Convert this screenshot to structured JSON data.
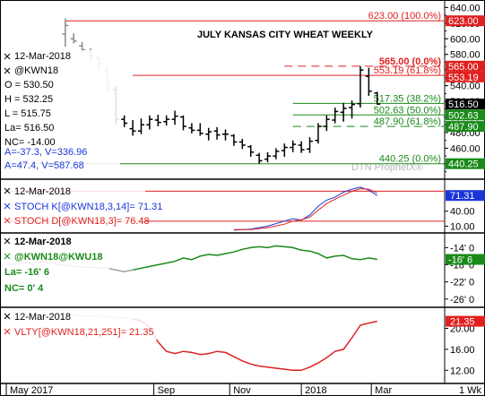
{
  "chart_data": [
    {
      "type": "ohlc",
      "panel": "price",
      "title": "JULY KANSAS CITY WHEAT WEEKLY",
      "watermark": "DTN ProphetX®",
      "info": {
        "date": "12-Mar-2018",
        "symbol": "@KWN18",
        "open": "O = 530.50",
        "high": "H = 532.25",
        "low": "L = 515.75",
        "last": "La= 516.50",
        "net_change": "NC= -14.00",
        "a_v1": "A=-37.3, V=336.96",
        "a_v2": "A=47.4, V=587.68"
      },
      "ylim": [
        425,
        645
      ],
      "yticks": [
        440,
        460,
        480,
        500,
        520,
        540,
        560,
        580,
        600,
        620,
        640
      ],
      "grid": false,
      "x_axis": {
        "range": [
          0,
          52
        ],
        "ticks": [
          {
            "x": 0,
            "label": "May 2017"
          },
          {
            "x": 17.5,
            "label": "Sep"
          },
          {
            "x": 26.5,
            "label": "Nov"
          },
          {
            "x": 35,
            "label": "2018"
          },
          {
            "x": 43.3,
            "label": "Mar"
          }
        ],
        "interval_label": "1 Wk"
      },
      "bars": [
        {
          "x": 7,
          "o": 606,
          "h": 626,
          "l": 590,
          "c": 617
        },
        {
          "x": 8,
          "o": 600,
          "h": 607,
          "l": 594,
          "c": 597
        },
        {
          "x": 9,
          "o": 591,
          "h": 596,
          "l": 580,
          "c": 586
        },
        {
          "x": 10,
          "o": 583,
          "h": 588,
          "l": 572,
          "c": 578
        },
        {
          "x": 11,
          "o": 575,
          "h": 578,
          "l": 559,
          "c": 568
        },
        {
          "x": 12,
          "o": 560,
          "h": 565,
          "l": 533,
          "c": 540
        },
        {
          "x": 13,
          "o": 535,
          "h": 540,
          "l": 490,
          "c": 497
        },
        {
          "x": 14,
          "o": 497,
          "h": 502,
          "l": 487,
          "c": 492
        },
        {
          "x": 15,
          "o": 485,
          "h": 496,
          "l": 476,
          "c": 482
        },
        {
          "x": 16,
          "o": 482,
          "h": 498,
          "l": 478,
          "c": 490
        },
        {
          "x": 17,
          "o": 490,
          "h": 502,
          "l": 484,
          "c": 497
        },
        {
          "x": 18,
          "o": 496,
          "h": 503,
          "l": 488,
          "c": 493
        },
        {
          "x": 19,
          "o": 494,
          "h": 502,
          "l": 489,
          "c": 497
        },
        {
          "x": 20,
          "o": 497,
          "h": 508,
          "l": 490,
          "c": 501
        },
        {
          "x": 21,
          "o": 500,
          "h": 502,
          "l": 483,
          "c": 488
        },
        {
          "x": 22,
          "o": 486,
          "h": 492,
          "l": 479,
          "c": 483
        },
        {
          "x": 23,
          "o": 483,
          "h": 492,
          "l": 476,
          "c": 479
        },
        {
          "x": 24,
          "o": 478,
          "h": 486,
          "l": 470,
          "c": 481
        },
        {
          "x": 25,
          "o": 482,
          "h": 487,
          "l": 471,
          "c": 477
        },
        {
          "x": 26,
          "o": 478,
          "h": 484,
          "l": 470,
          "c": 478
        },
        {
          "x": 27,
          "o": 476,
          "h": 478,
          "l": 463,
          "c": 468
        },
        {
          "x": 28,
          "o": 468,
          "h": 472,
          "l": 459,
          "c": 464
        },
        {
          "x": 29,
          "o": 462,
          "h": 464,
          "l": 449,
          "c": 455
        },
        {
          "x": 30,
          "o": 451,
          "h": 454,
          "l": 440,
          "c": 444
        },
        {
          "x": 31,
          "o": 446,
          "h": 455,
          "l": 442,
          "c": 450
        },
        {
          "x": 32,
          "o": 450,
          "h": 460,
          "l": 446,
          "c": 456
        },
        {
          "x": 33,
          "o": 457,
          "h": 466,
          "l": 449,
          "c": 461
        },
        {
          "x": 34,
          "o": 461,
          "h": 470,
          "l": 455,
          "c": 465
        },
        {
          "x": 35,
          "o": 464,
          "h": 469,
          "l": 454,
          "c": 458
        },
        {
          "x": 36,
          "o": 459,
          "h": 474,
          "l": 454,
          "c": 469
        },
        {
          "x": 37,
          "o": 470,
          "h": 492,
          "l": 466,
          "c": 488
        },
        {
          "x": 38,
          "o": 488,
          "h": 502,
          "l": 482,
          "c": 497
        },
        {
          "x": 39,
          "o": 496,
          "h": 512,
          "l": 492,
          "c": 507
        },
        {
          "x": 40,
          "o": 506,
          "h": 518,
          "l": 494,
          "c": 511
        },
        {
          "x": 41,
          "o": 512,
          "h": 521,
          "l": 498,
          "c": 516
        },
        {
          "x": 42,
          "o": 517,
          "h": 565,
          "l": 512,
          "c": 560
        },
        {
          "x": 43,
          "o": 552,
          "h": 563,
          "l": 527,
          "c": 533
        },
        {
          "x": 44,
          "o": 530.5,
          "h": 532.25,
          "l": 515.75,
          "c": 516.5
        }
      ],
      "hlines": [
        {
          "value": 623,
          "label": "623.00 (100.0%)",
          "color": "#e02020",
          "style": "solid",
          "from": 7,
          "label_color": "#e02020"
        },
        {
          "value": 565,
          "label": "565.00 (0.0%)",
          "color": "#e02020",
          "style": "dashed",
          "from": 33,
          "label_color": "#e02020"
        },
        {
          "value": 553.19,
          "label": "553.19 (61.8%)",
          "color": "#e02020",
          "style": "solid",
          "from": 15,
          "label_color": "#e02020"
        },
        {
          "value": 517.35,
          "label": "517.35 (38.2%)",
          "color": "#1a8a1a",
          "style": "solid",
          "from": 34,
          "label_color": "#1a8a1a"
        },
        {
          "value": 502.63,
          "label": "502.63 (50.0%)",
          "color": "#1a8a1a",
          "style": "solid",
          "from": 34,
          "label_color": "#1a8a1a"
        },
        {
          "value": 487.9,
          "label": "487.90 (61.8%)",
          "color": "#1a8a1a",
          "style": "dashed",
          "from": 34,
          "label_color": "#1a8a1a"
        },
        {
          "value": 440.25,
          "label": "440.25 (0.0%)",
          "color": "#1a8a1a",
          "style": "solid",
          "from": 0,
          "label_color": "#1a8a1a"
        }
      ],
      "right_tags": [
        {
          "value": 623,
          "label": "623.00",
          "bg": "#e02020",
          "fg": "#ffffff"
        },
        {
          "value": 565,
          "label": "565.00",
          "bg": "#e02020",
          "fg": "#ffffff"
        },
        {
          "value": 553.19,
          "label": "553.19",
          "bg": "#e02020",
          "fg": "#ffffff"
        },
        {
          "value": 516.5,
          "label": "516.50",
          "bg": "#000000",
          "fg": "#ffffff"
        },
        {
          "value": 502.63,
          "label": "502.63",
          "bg": "#1a8a1a",
          "fg": "#ffffff"
        },
        {
          "value": 487.9,
          "label": "487.90",
          "bg": "#1a8a1a",
          "fg": "#ffffff"
        },
        {
          "value": 440.25,
          "label": "440.25",
          "bg": "#1a8a1a",
          "fg": "#ffffff"
        }
      ]
    },
    {
      "type": "line",
      "panel": "stoch",
      "info": {
        "date": "12-Mar-2018",
        "k_label": "STOCH K[@KWN18,3,14]= 71.31",
        "d_label": "STOCH D[@KWN18,3]= 76.48"
      },
      "ylim": [
        0,
        95
      ],
      "yticks": [
        {
          "value": 10,
          "label": "10.00"
        },
        {
          "value": 40,
          "label": "40.00"
        }
      ],
      "levels": [
        {
          "value": 80,
          "color": "#e02020"
        },
        {
          "value": 20,
          "color": "#e02020"
        }
      ],
      "tag": {
        "value": 71.31,
        "label": "71.31",
        "bg": "#1a36d8",
        "fg": "#ffffff"
      },
      "series": [
        {
          "name": "STOCH K",
          "color": "#1a36d8",
          "x": [
            27,
            29,
            31,
            33,
            34,
            35,
            36,
            37,
            38,
            39,
            40,
            41,
            42,
            43,
            44
          ],
          "values": [
            2,
            4,
            10,
            20,
            25,
            22,
            32,
            50,
            62,
            68,
            78,
            84,
            88,
            82,
            71.3
          ]
        },
        {
          "name": "STOCH D",
          "color": "#e02020",
          "x": [
            27,
            29,
            31,
            33,
            34,
            35,
            36,
            37,
            38,
            39,
            40,
            41,
            42,
            43,
            44
          ],
          "values": [
            3,
            3,
            7,
            14,
            20,
            23,
            28,
            42,
            55,
            64,
            72,
            80,
            85,
            84,
            76.5
          ]
        }
      ]
    },
    {
      "type": "line",
      "panel": "spread",
      "info": {
        "date": "12-Mar-2018",
        "symbol": "@KWN18@KWU18",
        "last": "La= -16' 6",
        "net_change": "NC= 0' 4"
      },
      "ylim": [
        -27.5,
        -11
      ],
      "yticks": [
        {
          "value": -14,
          "label": "-14' 0"
        },
        {
          "value": -18,
          "label": "-18' 0"
        },
        {
          "value": -22,
          "label": "-22' 0"
        },
        {
          "value": -26,
          "label": "-26' 0"
        }
      ],
      "tag": {
        "value": -16.75,
        "label": "-16' 6",
        "bg": "#1a8a1a",
        "fg": "#ffffff"
      },
      "series": [
        {
          "name": "spread",
          "color": "#9aa09a",
          "x": [
            0,
            2,
            4,
            6,
            8,
            10,
            12,
            13,
            14,
            15
          ],
          "values": [
            -18.0,
            -17.6,
            -17.2,
            -17.8,
            -18.4,
            -18.6,
            -18.8,
            -19.2,
            -19.6,
            -19.2
          ]
        },
        {
          "name": "spread",
          "color": "#1a8a1a",
          "x": [
            15,
            17,
            19,
            20,
            21,
            22,
            23,
            24,
            25,
            26,
            27,
            28,
            29,
            30,
            31,
            32,
            33,
            34,
            35,
            36,
            37,
            38,
            39,
            40,
            41,
            42,
            43,
            44
          ],
          "values": [
            -19.2,
            -18.4,
            -17.6,
            -17.2,
            -16.4,
            -16.8,
            -16.0,
            -15.6,
            -15.8,
            -15.4,
            -15.0,
            -14.4,
            -14.0,
            -13.8,
            -14.0,
            -13.6,
            -13.8,
            -14.0,
            -14.6,
            -14.8,
            -15.4,
            -16.4,
            -16.0,
            -15.8,
            -16.6,
            -16.8,
            -16.4,
            -16.75
          ]
        }
      ]
    },
    {
      "type": "line",
      "panel": "volatility",
      "info": {
        "date": "12-Mar-2018",
        "label": "VLTY[@KWN18,21,251]= 21.35"
      },
      "ylim": [
        10,
        23.5
      ],
      "yticks": [
        {
          "value": 12,
          "label": "12.00"
        },
        {
          "value": 16,
          "label": "16.00"
        },
        {
          "value": 20,
          "label": "20.00"
        }
      ],
      "tag": {
        "value": 21.35,
        "label": "21.35",
        "bg": "#e02020",
        "fg": "#ffffff"
      },
      "series": [
        {
          "name": "VLTY",
          "color": "#e8b4b4",
          "x": [
            0,
            3,
            6,
            9,
            12,
            15
          ],
          "values": [
            22.0,
            22.4,
            22.6,
            22.4,
            22.2,
            21.8
          ]
        },
        {
          "name": "VLTY",
          "color": "#e02020",
          "x": [
            15,
            16,
            17,
            18,
            19,
            20,
            21,
            22,
            23,
            24,
            25,
            26,
            27,
            28,
            29,
            30,
            31,
            32,
            33,
            34,
            35,
            36,
            37,
            38,
            39,
            40,
            41,
            42,
            43,
            44
          ],
          "values": [
            21.8,
            21.4,
            20.2,
            17.4,
            15.6,
            15.2,
            15.6,
            15.4,
            15.0,
            15.2,
            15.6,
            15.4,
            14.6,
            13.8,
            13.2,
            12.8,
            12.6,
            12.4,
            12.2,
            12.0,
            12.0,
            12.6,
            13.4,
            14.4,
            15.6,
            16.0,
            18.2,
            20.6,
            21.0,
            21.35
          ]
        }
      ]
    }
  ]
}
